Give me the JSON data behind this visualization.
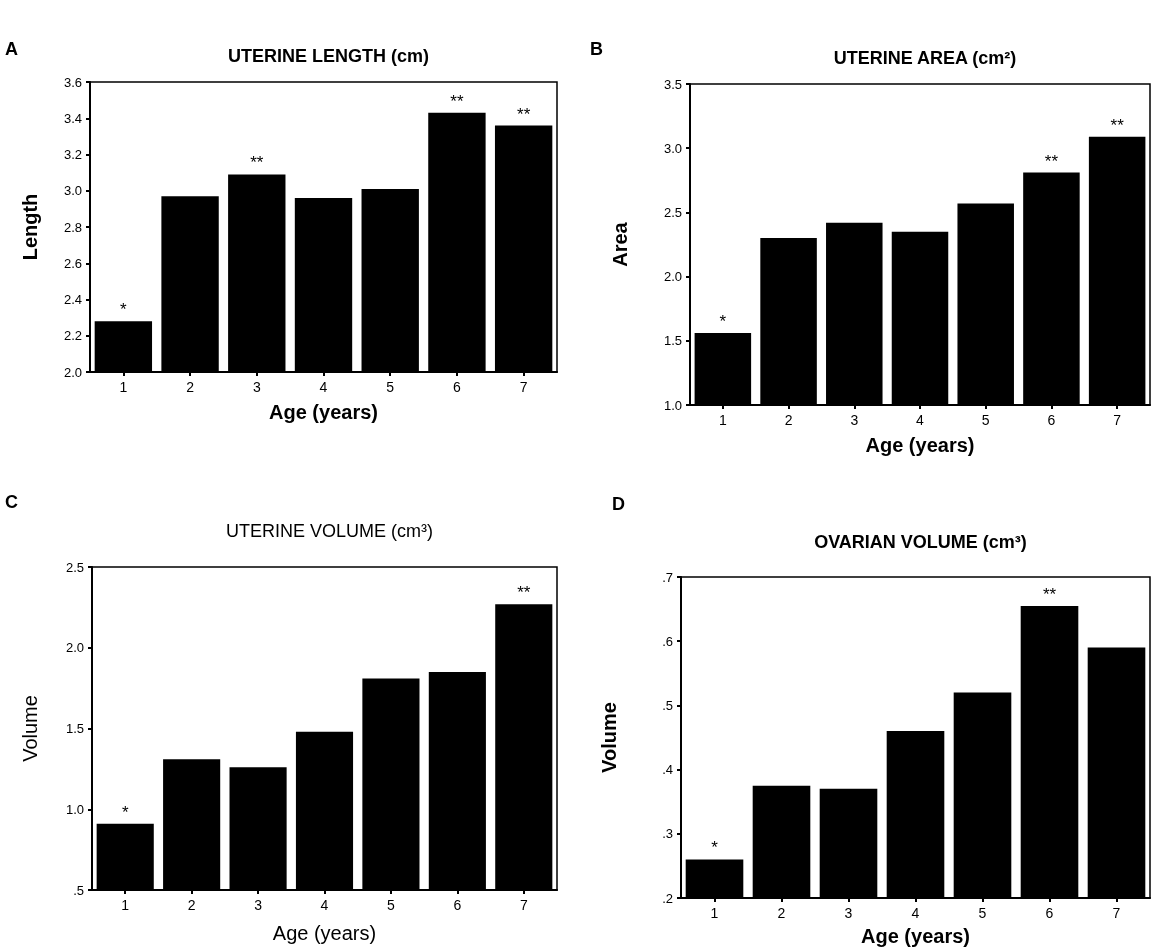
{
  "chart_data": [
    {
      "type": "bar",
      "title": "UTERINE LENGTH (cm)",
      "xlabel": "Age (years)",
      "ylabel": "Length",
      "categories": [
        "1",
        "2",
        "3",
        "4",
        "5",
        "6",
        "7"
      ],
      "values": [
        2.28,
        2.97,
        3.09,
        2.96,
        3.01,
        3.43,
        3.36
      ],
      "color": "#000000",
      "ylim": [
        2.0,
        3.6
      ],
      "yticks": [
        {
          "value": 2.0,
          "label": "2.0"
        },
        2.2,
        2.4,
        2.6,
        2.8,
        {
          "value": 3.0,
          "label": "3.0"
        },
        3.2,
        3.4,
        3.6
      ],
      "grid": false,
      "annotations": [
        "A",
        {
          "text": "*",
          "x": "1",
          "y": 2.28
        },
        {
          "text": "**",
          "x": "3",
          "y": 3.09
        },
        {
          "text": "**",
          "x": "6",
          "y": 3.43
        },
        {
          "text": "**",
          "x": "7",
          "y": 3.36
        }
      ]
    },
    {
      "type": "bar",
      "title": "UTERINE AREA (cm²)",
      "xlabel": "Age (years)",
      "ylabel": "Area",
      "categories": [
        "1",
        "2",
        "3",
        "4",
        "5",
        "6",
        "7"
      ],
      "values": [
        1.56,
        2.3,
        2.42,
        2.35,
        2.57,
        2.81,
        3.09
      ],
      "color": "#000000",
      "ylim": [
        1.0,
        3.5
      ],
      "yticks": [
        {
          "value": 1.0,
          "label": "1.0"
        },
        1.5,
        {
          "value": 2.0,
          "label": "2.0"
        },
        2.5,
        {
          "value": 3.0,
          "label": "3.0"
        },
        3.5
      ],
      "grid": false,
      "annotations": [
        "B",
        {
          "text": "*",
          "x": "1",
          "y": 1.56
        },
        {
          "text": "**",
          "x": "6",
          "y": 2.81
        },
        {
          "text": "**",
          "x": "7",
          "y": 3.09
        }
      ]
    },
    {
      "type": "bar",
      "title": "UTERINE VOLUME (cm³)",
      "xlabel": "Age (years)",
      "ylabel": "Volume",
      "categories": [
        "1",
        "2",
        "3",
        "4",
        "5",
        "6",
        "7"
      ],
      "values": [
        0.91,
        1.31,
        1.26,
        1.48,
        1.81,
        1.85,
        2.27
      ],
      "color": "#000000",
      "ylim": [
        0.5,
        2.5
      ],
      "yticks": [
        {
          "value": 0.5,
          "label": ".5"
        },
        {
          "value": 1.0,
          "label": "1.0"
        },
        1.5,
        {
          "value": 2.0,
          "label": "2.0"
        },
        2.5
      ],
      "grid": false,
      "annotations": [
        "C",
        {
          "text": "*",
          "x": "1",
          "y": 0.91
        },
        {
          "text": "**",
          "x": "7",
          "y": 2.27
        }
      ]
    },
    {
      "type": "bar",
      "title": "OVARIAN VOLUME (cm³)",
      "xlabel": "Age (years)",
      "ylabel": "Volume",
      "categories": [
        "1",
        "2",
        "3",
        "4",
        "5",
        "6",
        "7"
      ],
      "values": [
        0.26,
        0.375,
        0.37,
        0.46,
        0.52,
        0.655,
        0.59
      ],
      "color": "#000000",
      "ylim": [
        0.2,
        0.7
      ],
      "yticks": [
        {
          "value": 0.2,
          "label": ".2"
        },
        {
          "value": 0.3,
          "label": ".3"
        },
        {
          "value": 0.4,
          "label": ".4"
        },
        {
          "value": 0.5,
          "label": ".5"
        },
        {
          "value": 0.6,
          "label": ".6"
        },
        {
          "value": 0.7,
          "label": ".7"
        }
      ],
      "grid": false,
      "annotations": [
        "D",
        {
          "text": "*",
          "x": "1",
          "y": 0.26
        },
        {
          "text": "**",
          "x": "6",
          "y": 0.655
        }
      ]
    }
  ]
}
